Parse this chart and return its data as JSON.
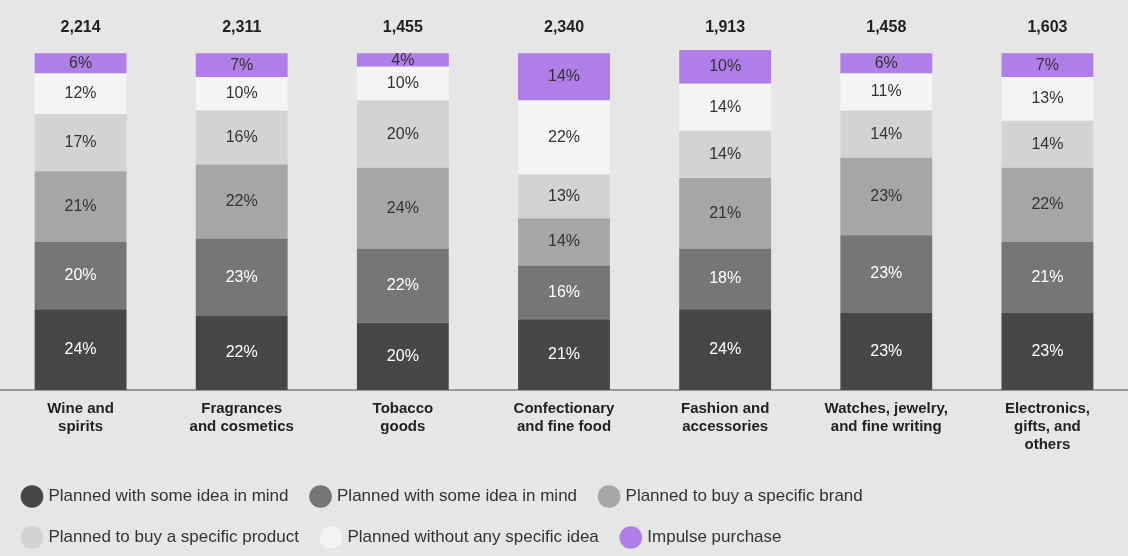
{
  "chart_data": {
    "type": "bar",
    "stacked": true,
    "ylim": [
      0,
      101
    ],
    "legend": "bottom",
    "grid": false,
    "categories": [
      "Wine and\nspirits",
      "Fragrances\nand cosmetics",
      "Tobacco\ngoods",
      "Confectionary\nand fine food",
      "Fashion and\naccessories",
      "Watches, jewelry,\nand fine writing",
      "Electronics,\ngifts, and\nothers"
    ],
    "annotations": [
      "2,214",
      "2,311",
      "1,455",
      "2,340",
      "1,913",
      "1,458",
      "1,603"
    ],
    "series": [
      {
        "name": "Planned with some idea in mind",
        "color": "#474747",
        "values": [
          24,
          22,
          20,
          21,
          24,
          23,
          23
        ],
        "value_labels": [
          "24%",
          "22%",
          "20%",
          "21%",
          "24%",
          "23%",
          "23%"
        ]
      },
      {
        "name": "Planned with some idea in mind",
        "color": "#767676",
        "values": [
          20,
          23,
          22,
          16,
          18,
          23,
          21
        ],
        "value_labels": [
          "20%",
          "23%",
          "22%",
          "16%",
          "18%",
          "23%",
          "21%"
        ]
      },
      {
        "name": "Planned to buy a specific brand",
        "color": "#a6a6a6",
        "values": [
          21,
          22,
          24,
          14,
          21,
          23,
          22
        ],
        "value_labels": [
          "21%",
          "22%",
          "24%",
          "14%",
          "21%",
          "23%",
          "22%"
        ]
      },
      {
        "name": "Planned to buy a specific product",
        "color": "#d3d3d3",
        "values": [
          17,
          16,
          20,
          13,
          14,
          14,
          14
        ],
        "value_labels": [
          "17%",
          "16%",
          "20%",
          "13%",
          "14%",
          "14%",
          "14%"
        ]
      },
      {
        "name": "Planned without any specific idea",
        "color": "#f4f4f4",
        "values": [
          12,
          10,
          10,
          22,
          14,
          11,
          13
        ],
        "value_labels": [
          "12%",
          "10%",
          "10%",
          "22%",
          "14%",
          "11%",
          "13%"
        ]
      },
      {
        "name": "Impulse purchase",
        "color": "#b07ee8",
        "values": [
          6,
          7,
          4,
          14,
          10,
          6,
          7
        ],
        "value_labels": [
          "6%",
          "7%",
          "4%",
          "14%",
          "10%",
          "6%",
          "7%"
        ]
      }
    ]
  }
}
